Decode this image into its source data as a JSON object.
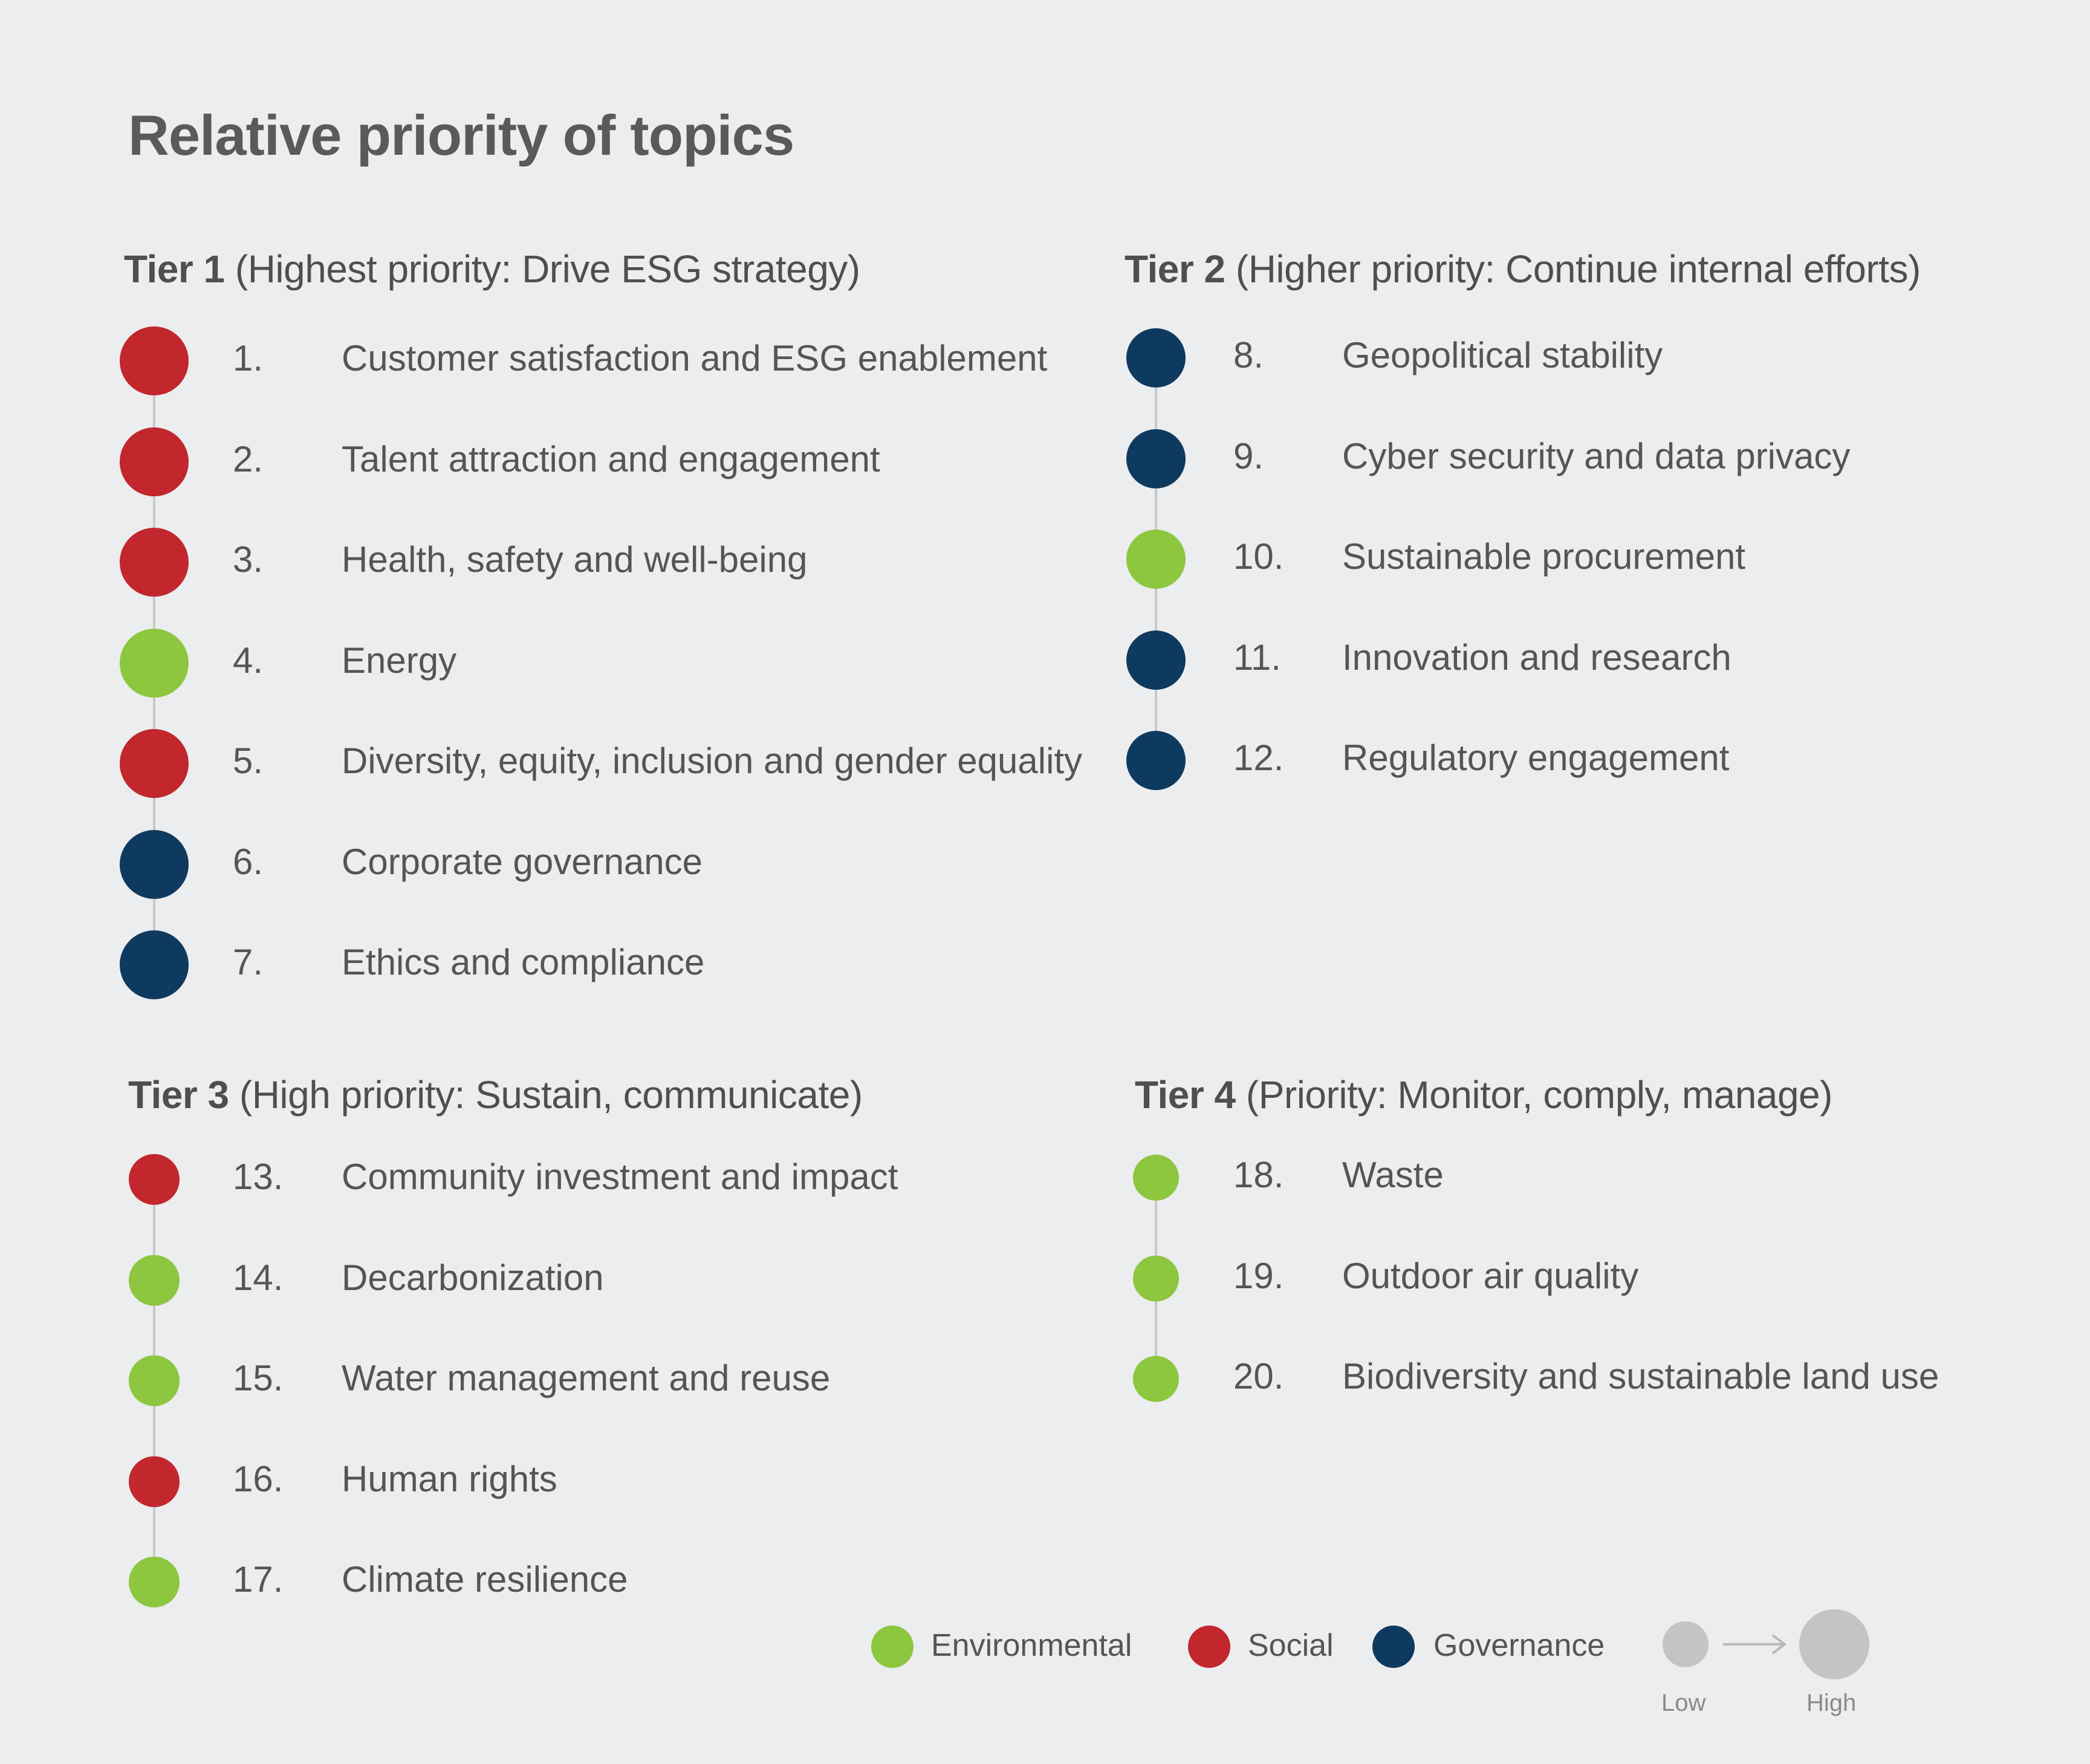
{
  "title": "Relative priority of topics",
  "colors": {
    "environmental": "#8dc63f",
    "social": "#c1272d",
    "governance": "#0f3a5f",
    "size_scale": "#c4c4c6",
    "connector": "#c8c8ca",
    "background": "#ecedef"
  },
  "tiers": [
    {
      "name": "Tier 1",
      "description": " (Highest priority: Drive ESG strategy)",
      "items": [
        {
          "number": "1.",
          "label": "Customer satisfaction and ESG enablement",
          "category": "social"
        },
        {
          "number": "2.",
          "label": "Talent attraction and engagement",
          "category": "social"
        },
        {
          "number": "3.",
          "label": "Health, safety and well-being",
          "category": "social"
        },
        {
          "number": "4.",
          "label": "Energy",
          "category": "environmental"
        },
        {
          "number": "5.",
          "label": "Diversity, equity, inclusion and gender equality",
          "category": "social"
        },
        {
          "number": "6.",
          "label": "Corporate governance",
          "category": "governance"
        },
        {
          "number": "7.",
          "label": "Ethics and compliance",
          "category": "governance"
        }
      ]
    },
    {
      "name": "Tier 2",
      "description": " (Higher priority: Continue internal efforts)",
      "items": [
        {
          "number": "8.",
          "label": "Geopolitical stability",
          "category": "governance"
        },
        {
          "number": "9.",
          "label": "Cyber security and data privacy",
          "category": "governance"
        },
        {
          "number": "10.",
          "label": "Sustainable procurement",
          "category": "environmental"
        },
        {
          "number": "11.",
          "label": "Innovation and research",
          "category": "governance"
        },
        {
          "number": "12.",
          "label": "Regulatory engagement",
          "category": "governance"
        }
      ]
    },
    {
      "name": "Tier 3",
      "description": " (High priority: Sustain, communicate)",
      "items": [
        {
          "number": "13.",
          "label": "Community investment and impact",
          "category": "social"
        },
        {
          "number": "14.",
          "label": "Decarbonization",
          "category": "environmental"
        },
        {
          "number": "15.",
          "label": "Water management and reuse",
          "category": "environmental"
        },
        {
          "number": "16.",
          "label": "Human rights",
          "category": "social"
        },
        {
          "number": "17.",
          "label": "Climate resilience",
          "category": "environmental"
        }
      ]
    },
    {
      "name": "Tier 4",
      "description": " (Priority: Monitor, comply, manage)",
      "items": [
        {
          "number": "18.",
          "label": "Waste",
          "category": "environmental"
        },
        {
          "number": "19.",
          "label": "Outdoor air quality",
          "category": "environmental"
        },
        {
          "number": "20.",
          "label": "Biodiversity and sustainable land use",
          "category": "environmental"
        }
      ]
    }
  ],
  "legend": {
    "categories": [
      {
        "key": "environmental",
        "label": "Environmental"
      },
      {
        "key": "social",
        "label": "Social"
      },
      {
        "key": "governance",
        "label": "Governance"
      }
    ],
    "size_low": "Low",
    "size_high": "High"
  }
}
